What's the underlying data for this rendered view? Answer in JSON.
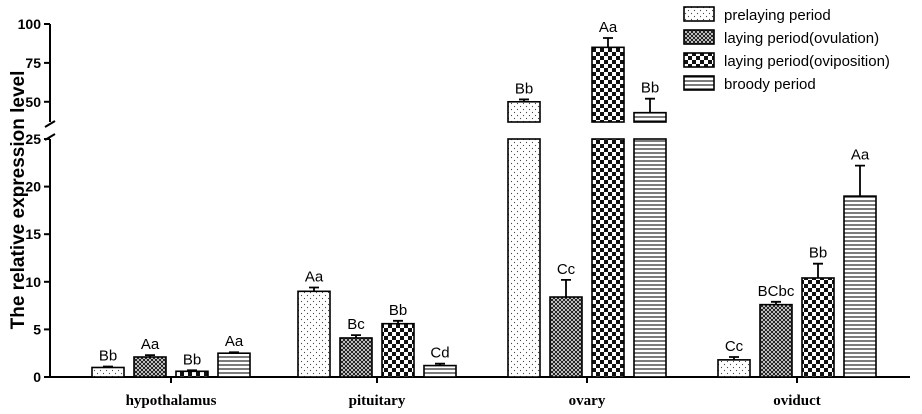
{
  "chart_data": {
    "type": "bar",
    "title": "",
    "xlabel": "",
    "ylabel": "The relative expression level",
    "categories": [
      "hypothalamus",
      "pituitary",
      "ovary",
      "oviduct"
    ],
    "y_axis": {
      "broken": true,
      "lower_range": [
        0,
        25
      ],
      "lower_ticks": [
        "0",
        "5",
        "10",
        "15",
        "20",
        "25"
      ],
      "upper_range": [
        37,
        100
      ],
      "upper_ticks": [
        "50",
        "75",
        "100"
      ]
    },
    "grid": false,
    "legend_position": "top-right",
    "series": [
      {
        "name": "prelaying  period",
        "pattern": "dots-fine",
        "values": [
          1.0,
          9.0,
          50.0,
          1.8
        ],
        "errors": [
          0.1,
          0.4,
          1.5,
          0.3
        ],
        "labels": [
          "Bb",
          "Aa",
          "Bb",
          "Cc"
        ]
      },
      {
        "name": "laying period(ovulation)",
        "pattern": "crosshatch",
        "values": [
          2.1,
          4.1,
          8.4,
          7.6
        ],
        "errors": [
          0.2,
          0.3,
          1.8,
          0.3
        ],
        "labels": [
          "Aa",
          "Bc",
          "Cc",
          "BCbc"
        ]
      },
      {
        "name": "laying period(oviposition)",
        "pattern": "checker",
        "values": [
          0.6,
          5.6,
          85.0,
          10.4
        ],
        "errors": [
          0.1,
          0.3,
          6.0,
          1.5
        ],
        "labels": [
          "Bb",
          "Bb",
          "Aa",
          "Bb"
        ]
      },
      {
        "name": "broody period",
        "pattern": "horizontal-lines",
        "values": [
          2.5,
          1.2,
          43.0,
          19.0
        ],
        "errors": [
          0.1,
          0.2,
          9.0,
          3.2
        ],
        "labels": [
          "Aa",
          "Cd",
          "Bb",
          "Aa"
        ]
      }
    ]
  }
}
